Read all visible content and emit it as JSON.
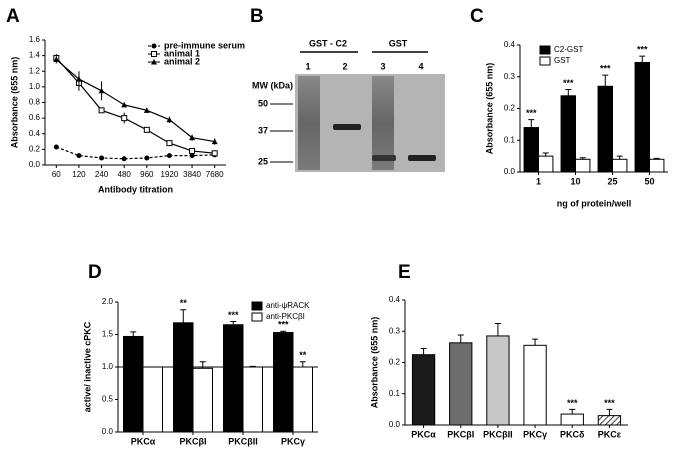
{
  "chart_data": [
    {
      "panel": "A",
      "type": "line",
      "x_label": "Antibody titration",
      "y_label": "Absorbance (655 nm)",
      "categories": [
        "60",
        "120",
        "240",
        "480",
        "960",
        "1920",
        "3840",
        "7680"
      ],
      "ylim": [
        0,
        1.6
      ],
      "yticks": [
        {
          "value": 0,
          "label": "0.0"
        },
        0.2,
        0.4,
        0.6,
        0.8,
        {
          "value": 1,
          "label": "1.0"
        },
        1.2,
        1.4,
        1.6
      ],
      "legend": "upper right",
      "series": [
        {
          "name": "pre-immune serum",
          "color": "#000000",
          "marker": "circle",
          "dashed": true,
          "values": [
            0.23,
            0.12,
            0.09,
            0.08,
            0.09,
            0.12,
            0.12,
            0.13
          ],
          "errors": [
            0.02,
            0.01,
            0.01,
            0.01,
            0.01,
            0.02,
            0.01,
            0.01
          ]
        },
        {
          "name": "animal 1",
          "color": "#000000",
          "marker": "square",
          "dashed": false,
          "values": [
            1.37,
            1.05,
            0.7,
            0.6,
            0.45,
            0.28,
            0.18,
            0.15
          ],
          "errors": [
            0.05,
            0.1,
            0.03,
            0.07,
            0.03,
            0.02,
            0.02,
            0.02
          ]
        },
        {
          "name": "animal 2",
          "color": "#000000",
          "marker": "triangle",
          "dashed": false,
          "values": [
            1.35,
            1.1,
            0.95,
            0.77,
            0.7,
            0.58,
            0.35,
            0.3
          ],
          "errors": [
            0.05,
            0.1,
            0.12,
            0.03,
            0.03,
            0.04,
            0.04,
            0.04
          ]
        }
      ]
    },
    {
      "panel": "C",
      "type": "bar",
      "x_label": "ng of protein/well",
      "y_label": "Absorbance (655 nm)",
      "categories": [
        "1",
        "10",
        "25",
        "50"
      ],
      "ylim": [
        0,
        0.4
      ],
      "yticks": [
        {
          "value": 0,
          "label": "0.0"
        },
        0.1,
        0.2,
        0.3,
        0.4
      ],
      "legend": "upper left",
      "series": [
        {
          "name": "C2-GST",
          "color": "#000000",
          "values": [
            0.14,
            0.24,
            0.27,
            0.345
          ],
          "errors": [
            0.025,
            0.02,
            0.035,
            0.02
          ],
          "significance": [
            "***",
            "***",
            "***",
            "***"
          ]
        },
        {
          "name": "GST",
          "color": "#ffffff",
          "values": [
            0.05,
            0.04,
            0.04,
            0.04
          ],
          "errors": [
            0.01,
            0.005,
            0.01,
            0.003
          ]
        }
      ]
    },
    {
      "panel": "D",
      "type": "bar",
      "y_label": "active/ inactive cPKC",
      "categories": [
        "PKCα",
        "PKCβI",
        "PKCβII",
        "PKCγ"
      ],
      "ylim": [
        0,
        2
      ],
      "yticks": [
        {
          "value": 0,
          "label": "0.0"
        },
        0.5,
        {
          "value": 1,
          "label": "1.0"
        },
        1.5,
        {
          "value": 2,
          "label": "2.0"
        }
      ],
      "hline": 1,
      "legend": "upper right",
      "series": [
        {
          "name": "anti-ψRACK",
          "color": "#000000",
          "values": [
            1.47,
            1.68,
            1.65,
            1.53
          ],
          "errors": [
            0.07,
            0.2,
            0.05,
            0.02
          ],
          "significance": [
            null,
            "**",
            "***",
            "***"
          ]
        },
        {
          "name": "anti-PKCβI",
          "color": "#ffffff",
          "values": [
            1,
            0.98,
            1,
            1
          ],
          "errors": [
            0,
            0.1,
            0.01,
            0.08
          ],
          "significance": [
            null,
            null,
            null,
            "**"
          ]
        }
      ]
    },
    {
      "panel": "E",
      "type": "bar",
      "y_label": "Absorbance (655 nm)",
      "categories": [
        "PKCα",
        "PKCβI",
        "PKCβII",
        "PKCγ",
        "PKCδ",
        "PKCε"
      ],
      "ylim": [
        0,
        0.4
      ],
      "yticks": [
        {
          "value": 0,
          "label": "0.0"
        },
        0.1,
        0.2,
        0.3,
        0.4
      ],
      "series": [
        {
          "values": [
            0.225,
            0.263,
            0.285,
            0.255,
            0.035,
            0.03
          ],
          "errors": [
            0.02,
            0.025,
            0.04,
            0.02,
            0.015,
            0.02
          ],
          "colors": [
            "#1a1a1a",
            "#6e6e6e",
            "#c8c8c8",
            "#ffffff",
            "#ffffff",
            "#ffffff"
          ],
          "patterns": [
            "solid",
            "solid",
            "solid",
            "solid",
            "solid",
            "hatched"
          ],
          "significance": [
            null,
            null,
            null,
            null,
            "***",
            "***"
          ]
        }
      ]
    }
  ],
  "gel": {
    "panel": "B",
    "groups": [
      "GST - C2",
      "GST"
    ],
    "lanes": [
      "1",
      "2",
      "3",
      "4"
    ],
    "mw_label": "MW (kDa)",
    "markers": [
      50,
      37,
      25
    ]
  }
}
